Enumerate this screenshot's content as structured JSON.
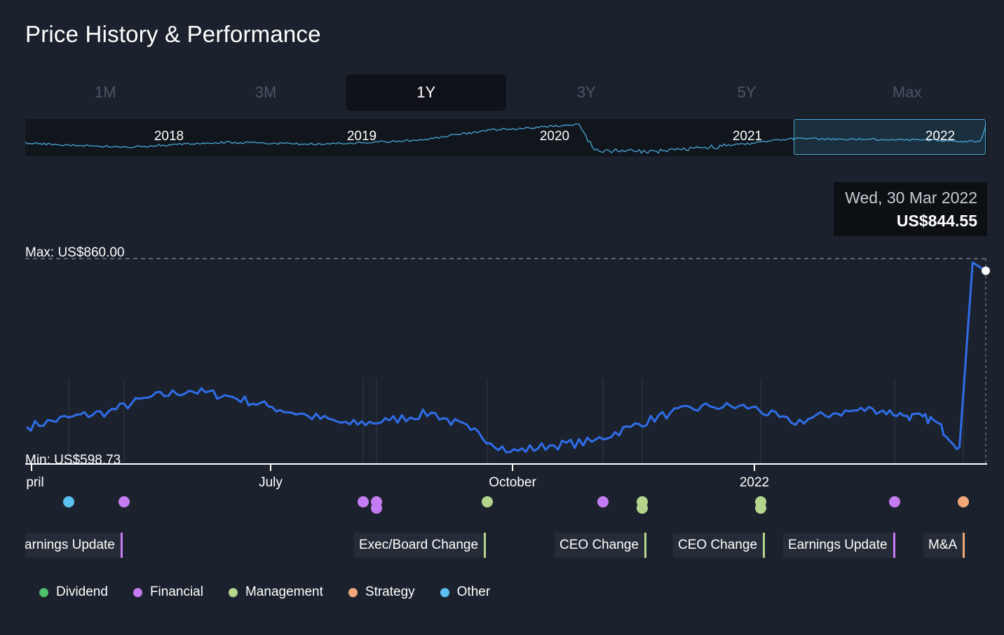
{
  "title": "Price History & Performance",
  "ranges": [
    {
      "label": "1M",
      "active": false
    },
    {
      "label": "3M",
      "active": false
    },
    {
      "label": "1Y",
      "active": true
    },
    {
      "label": "3Y",
      "active": false
    },
    {
      "label": "5Y",
      "active": false
    },
    {
      "label": "Max",
      "active": false
    }
  ],
  "navigator": {
    "years": [
      "2018",
      "2019",
      "2020",
      "2021",
      "2022"
    ]
  },
  "tooltip": {
    "date": "Wed, 30 Mar 2022",
    "price": "US$844.55"
  },
  "max_label": "Max: US$860.00",
  "min_label": "Min: US$598.73",
  "months": [
    "pril",
    "July",
    "October",
    "2022"
  ],
  "event_labels": [
    {
      "text": "arnings Update",
      "category": "Financial"
    },
    {
      "text": "Exec/Board Change",
      "category": "Management"
    },
    {
      "text": "CEO Change",
      "category": "Management"
    },
    {
      "text": "CEO Change",
      "category": "Management"
    },
    {
      "text": "Earnings Update",
      "category": "Financial"
    },
    {
      "text": "M&A",
      "category": "Strategy"
    }
  ],
  "legend": [
    {
      "label": "Dividend",
      "color": "#4fbf6a"
    },
    {
      "label": "Financial",
      "color": "#c57cf2"
    },
    {
      "label": "Management",
      "color": "#b5d58c"
    },
    {
      "label": "Strategy",
      "color": "#f0a87a"
    },
    {
      "label": "Other",
      "color": "#5cc0f0"
    }
  ],
  "colors": {
    "line": "#2f6de8",
    "navigator_line": "#4aa6d9",
    "background": "#1b222d"
  },
  "chart_data": {
    "type": "line",
    "ylim": [
      598.73,
      860.0
    ],
    "max": 860.0,
    "min": 598.73,
    "last": {
      "date": "Wed, 30 Mar 2022",
      "value": 844.55
    },
    "x": [
      "2021-03-30",
      "2021-04-15",
      "2021-04-30",
      "2021-05-15",
      "2021-05-31",
      "2021-06-15",
      "2021-06-30",
      "2021-07-15",
      "2021-07-31",
      "2021-08-15",
      "2021-08-31",
      "2021-09-15",
      "2021-09-30",
      "2021-10-15",
      "2021-10-31",
      "2021-11-15",
      "2021-11-30",
      "2021-12-15",
      "2021-12-31",
      "2022-01-15",
      "2022-01-31",
      "2022-02-15",
      "2022-02-28",
      "2022-03-10",
      "2022-03-20",
      "2022-03-25",
      "2022-03-30"
    ],
    "values": [
      646,
      658,
      665,
      683,
      692,
      685,
      672,
      660,
      649,
      654,
      664,
      642,
      614,
      622,
      627,
      646,
      664,
      672,
      671,
      651,
      663,
      669,
      660,
      655,
      620,
      855,
      844.55
    ],
    "events": [
      {
        "category": "Other"
      },
      {
        "category": "Financial"
      },
      {
        "category": "Financial"
      },
      {
        "category": "Financial"
      },
      {
        "category": "Management"
      },
      {
        "category": "Financial"
      },
      {
        "category": "Management"
      },
      {
        "category": "Management"
      },
      {
        "category": "Financial"
      },
      {
        "category": "Strategy"
      }
    ]
  }
}
